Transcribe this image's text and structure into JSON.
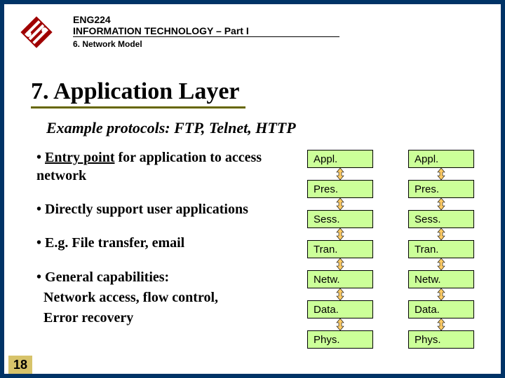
{
  "header": {
    "course": "ENG224",
    "title": "INFORMATION TECHNOLOGY – Part I",
    "subtitle": "6. Network Model"
  },
  "section_heading": "7. Application Layer",
  "subtitle": "Example protocols: FTP, Telnet, HTTP",
  "bullets": {
    "b1a": "Entry point",
    "b1b": " for application to access network",
    "b2": "Directly support user applications",
    "b3": "E.g. File transfer, email",
    "b4a": "General capabilities:",
    "b4b": "Network access, flow control,",
    "b4c": "Error recovery"
  },
  "layers": {
    "l0": "Appl.",
    "l1": "Pres.",
    "l2": "Sess.",
    "l3": "Tran.",
    "l4": "Netw.",
    "l5": "Data.",
    "l6": "Phys."
  },
  "page_number": "18",
  "colors": {
    "slide_border": "#003366",
    "heading_underline": "#666600",
    "layer_fill": "#ccff99",
    "connector_fill": "#ffcc66",
    "pagenum_bg": "#d7c36a"
  }
}
